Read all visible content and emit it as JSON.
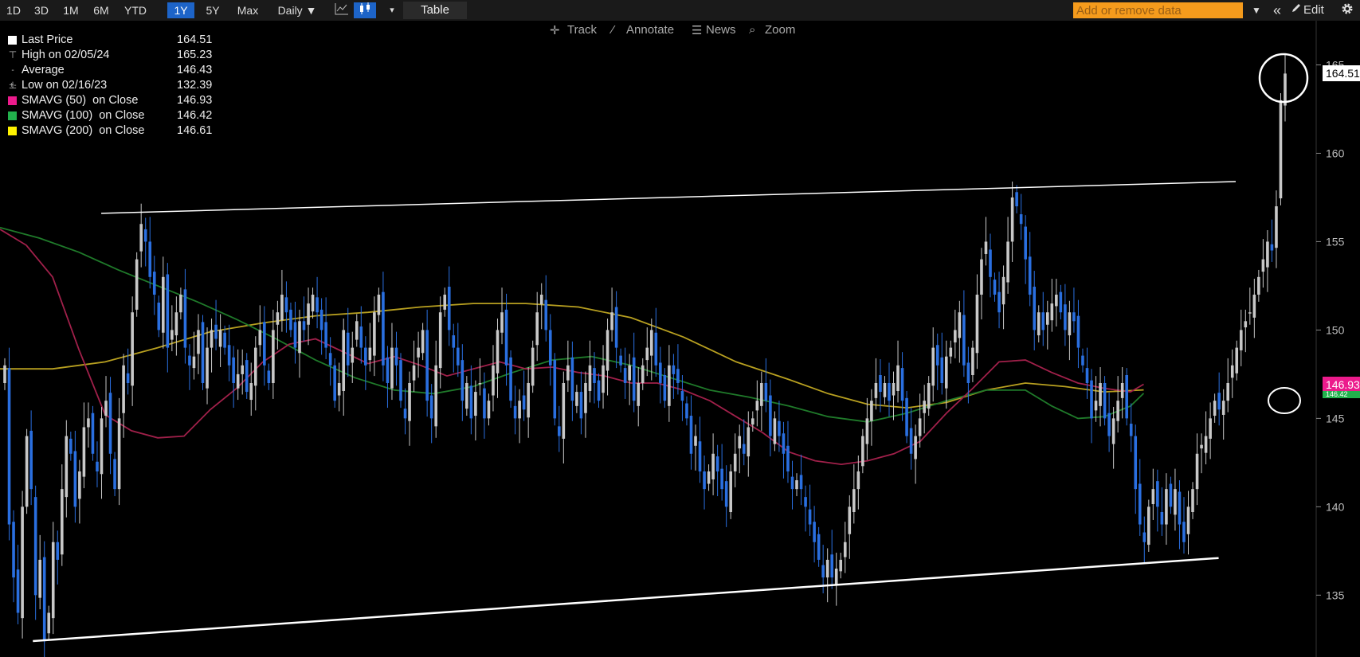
{
  "toolbar": {
    "ranges": [
      {
        "label": "1D",
        "active": false
      },
      {
        "label": "3D",
        "active": false
      },
      {
        "label": "1M",
        "active": false
      },
      {
        "label": "6M",
        "active": false
      },
      {
        "label": "YTD",
        "active": false
      },
      {
        "label": "1Y",
        "active": true
      },
      {
        "label": "5Y",
        "active": false
      },
      {
        "label": "Max",
        "active": false
      }
    ],
    "frequency": "Daily ▼",
    "chart_icon": "line-chart-icon",
    "candle_icon": "candlestick-icon",
    "more_icon": "▾",
    "table_label": "Table",
    "add_data_placeholder": "Add or remove data",
    "filter_icon": "▼",
    "collapse_icon": "«",
    "edit_label": "Edit",
    "settings_icon": "gear-icon"
  },
  "subtools": {
    "track": "Track",
    "annotate": "Annotate",
    "news": "News",
    "zoom": "Zoom"
  },
  "legend": [
    {
      "symbol": "swatch",
      "color": "#ffffff",
      "label": "Last Price",
      "value": "164.51"
    },
    {
      "symbol": "⊤",
      "color": "#bbbbbb",
      "label": "High on 02/05/24",
      "value": "165.23"
    },
    {
      "symbol": "-+-",
      "color": "#bbbbbb",
      "label": "Average",
      "value": "146.43"
    },
    {
      "symbol": "⊥",
      "color": "#bbbbbb",
      "label": "Low on 02/16/23",
      "value": "132.39"
    },
    {
      "symbol": "swatch",
      "color": "#ec1b8c",
      "label": "SMAVG (50)  on Close",
      "value": "146.93"
    },
    {
      "symbol": "swatch",
      "color": "#22b14c",
      "label": "SMAVG (100)  on Close",
      "value": "146.42"
    },
    {
      "symbol": "swatch",
      "color": "#fff200",
      "label": "SMAVG (200)  on Close",
      "value": "146.61"
    }
  ],
  "badges": {
    "last": {
      "text": "164.51",
      "bg": "#ffffff",
      "fg": "#000000"
    },
    "sma50": {
      "text": "146.93",
      "bg": "#ec1b8c",
      "fg": "#ffffff"
    },
    "sma100": {
      "text": "146.42",
      "bg": "#22b14c",
      "fg": "#ffffff"
    }
  },
  "colors": {
    "up": "#c8c8c8",
    "down": "#2a6fe0",
    "sma50": "#a0204a",
    "sma100": "#1f7a2a",
    "sma200": "#b8a020",
    "axis_text": "#bbbbbb"
  },
  "chart_data": {
    "type": "candlestick",
    "y_axis": {
      "min": 131.5,
      "max": 167.5,
      "ticks": [
        135,
        140,
        145,
        150,
        155,
        160,
        165
      ],
      "side": "right"
    },
    "trendlines": [
      {
        "name": "resistance",
        "from": [
          0.077,
          156.6
        ],
        "to": [
          0.94,
          158.4
        ]
      },
      {
        "name": "support",
        "from": [
          0.025,
          132.4
        ],
        "to": [
          0.927,
          137.1
        ]
      }
    ],
    "close_series": [
      148.0,
      139.0,
      136.0,
      134.0,
      140.0,
      144.0,
      141.0,
      135.0,
      137.0,
      132.39,
      134.0,
      138.0,
      137.0,
      141.0,
      144.0,
      143.0,
      140.0,
      142.0,
      144.5,
      145.0,
      143.0,
      142.0,
      145.0,
      146.0,
      143.0,
      141.0,
      145.0,
      148.0,
      147.0,
      151.0,
      154.0,
      156.0,
      155.0,
      153.0,
      152.0,
      150.0,
      153.0,
      149.0,
      150.0,
      151.0,
      152.0,
      149.0,
      148.0,
      148.5,
      150.0,
      147.0,
      149.0,
      150.0,
      149.5,
      150.0,
      149.0,
      148.0,
      147.0,
      147.5,
      148.0,
      146.5,
      147.0,
      149.0,
      150.0,
      148.0,
      147.0,
      150.0,
      151.0,
      152.0,
      151.0,
      150.0,
      149.0,
      150.5,
      150.0,
      151.5,
      152.0,
      151.0,
      150.0,
      149.0,
      148.0,
      146.0,
      147.0,
      150.0,
      148.0,
      149.0,
      150.5,
      149.0,
      148.0,
      149.0,
      151.0,
      152.0,
      148.0,
      147.0,
      149.0,
      148.0,
      146.0,
      145.0,
      147.0,
      148.0,
      149.0,
      150.0,
      146.0,
      145.0,
      148.0,
      151.0,
      152.0,
      150.0,
      149.0,
      148.0,
      146.0,
      147.0,
      145.0,
      146.5,
      147.0,
      145.0,
      146.0,
      148.0,
      150.0,
      151.0,
      148.0,
      146.0,
      145.0,
      146.0,
      145.5,
      147.0,
      149.0,
      151.0,
      152.0,
      150.0,
      148.0,
      145.0,
      144.0,
      147.0,
      148.0,
      146.0,
      146.5,
      145.0,
      147.0,
      148.0,
      147.0,
      146.0,
      148.0,
      150.0,
      151.0,
      149.0,
      148.0,
      147.0,
      148.0,
      146.0,
      147.0,
      148.0,
      149.0,
      150.0,
      148.0,
      147.0,
      146.0,
      148.0,
      147.5,
      147.0,
      146.0,
      145.0,
      143.0,
      144.0,
      142.0,
      141.0,
      142.0,
      143.0,
      142.0,
      141.0,
      140.0,
      142.0,
      143.0,
      144.0,
      143.0,
      144.5,
      145.0,
      146.0,
      147.0,
      146.0,
      144.0,
      145.0,
      144.0,
      143.0,
      142.0,
      141.0,
      141.5,
      141.0,
      140.0,
      139.0,
      138.0,
      137.0,
      136.0,
      137.0,
      136.0,
      136.5,
      137.0,
      138.0,
      140.0,
      141.0,
      142.0,
      144.0,
      145.0,
      146.0,
      147.0,
      146.5,
      147.0,
      146.0,
      147.0,
      148.0,
      146.0,
      144.0,
      143.0,
      144.0,
      145.0,
      146.0,
      147.0,
      149.0,
      148.0,
      147.0,
      148.5,
      149.0,
      150.0,
      151.0,
      148.0,
      147.0,
      149.0,
      152.0,
      154.0,
      155.0,
      153.0,
      152.0,
      151.0,
      153.0,
      155.0,
      157.5,
      157.0,
      156.0,
      154.0,
      152.0,
      150.0,
      151.0,
      150.0,
      151.0,
      151.5,
      152.0,
      151.0,
      150.0,
      151.0,
      150.5,
      149.0,
      148.0,
      147.0,
      145.0,
      146.0,
      147.0,
      145.0,
      144.0,
      145.0,
      146.0,
      147.0,
      145.0,
      144.0,
      141.0,
      139.0,
      138.0,
      140.0,
      141.0,
      140.0,
      139.0,
      141.0,
      140.0,
      141.0,
      139.0,
      138.0,
      140.0,
      141.0,
      143.0,
      143.5,
      144.0,
      145.0,
      146.0,
      145.5,
      146.0,
      147.0,
      148.0,
      149.0,
      150.0,
      150.5,
      151.0,
      152.0,
      153.0,
      154.0,
      155.0,
      154.5,
      157.0,
      163.0,
      164.51
    ],
    "sma50": [
      [
        0.0,
        155.7
      ],
      [
        0.02,
        154.8
      ],
      [
        0.04,
        153.0
      ],
      [
        0.06,
        148.9
      ],
      [
        0.08,
        145.2
      ],
      [
        0.1,
        144.3
      ],
      [
        0.12,
        143.9
      ],
      [
        0.14,
        144.0
      ],
      [
        0.16,
        145.5
      ],
      [
        0.18,
        146.7
      ],
      [
        0.2,
        148.2
      ],
      [
        0.22,
        149.2
      ],
      [
        0.24,
        149.5
      ],
      [
        0.26,
        148.8
      ],
      [
        0.28,
        148.1
      ],
      [
        0.3,
        148.5
      ],
      [
        0.32,
        148.0
      ],
      [
        0.34,
        147.4
      ],
      [
        0.36,
        147.8
      ],
      [
        0.38,
        148.2
      ],
      [
        0.4,
        147.8
      ],
      [
        0.42,
        147.9
      ],
      [
        0.44,
        147.6
      ],
      [
        0.46,
        147.4
      ],
      [
        0.48,
        147.0
      ],
      [
        0.5,
        147.0
      ],
      [
        0.52,
        146.6
      ],
      [
        0.54,
        146.0
      ],
      [
        0.56,
        145.1
      ],
      [
        0.58,
        144.2
      ],
      [
        0.6,
        143.1
      ],
      [
        0.62,
        142.6
      ],
      [
        0.64,
        142.4
      ],
      [
        0.66,
        142.6
      ],
      [
        0.68,
        143.0
      ],
      [
        0.7,
        143.7
      ],
      [
        0.72,
        145.3
      ],
      [
        0.74,
        146.7
      ],
      [
        0.76,
        148.2
      ],
      [
        0.78,
        148.3
      ],
      [
        0.8,
        147.6
      ],
      [
        0.82,
        147.0
      ],
      [
        0.84,
        146.7
      ],
      [
        0.86,
        146.5
      ],
      [
        0.87,
        146.93
      ]
    ],
    "sma100": [
      [
        0.0,
        155.8
      ],
      [
        0.03,
        155.2
      ],
      [
        0.06,
        154.4
      ],
      [
        0.09,
        153.4
      ],
      [
        0.12,
        152.5
      ],
      [
        0.15,
        151.6
      ],
      [
        0.18,
        150.6
      ],
      [
        0.21,
        149.5
      ],
      [
        0.24,
        148.3
      ],
      [
        0.27,
        147.3
      ],
      [
        0.3,
        146.6
      ],
      [
        0.33,
        146.4
      ],
      [
        0.36,
        146.8
      ],
      [
        0.39,
        147.6
      ],
      [
        0.42,
        148.3
      ],
      [
        0.45,
        148.5
      ],
      [
        0.48,
        148.0
      ],
      [
        0.51,
        147.3
      ],
      [
        0.54,
        146.6
      ],
      [
        0.57,
        146.2
      ],
      [
        0.6,
        145.7
      ],
      [
        0.63,
        145.1
      ],
      [
        0.66,
        144.8
      ],
      [
        0.69,
        145.3
      ],
      [
        0.72,
        146.0
      ],
      [
        0.75,
        146.6
      ],
      [
        0.78,
        146.6
      ],
      [
        0.8,
        145.7
      ],
      [
        0.82,
        145.0
      ],
      [
        0.84,
        145.1
      ],
      [
        0.86,
        145.7
      ],
      [
        0.87,
        146.42
      ]
    ],
    "sma200": [
      [
        0.0,
        147.8
      ],
      [
        0.04,
        147.8
      ],
      [
        0.08,
        148.2
      ],
      [
        0.12,
        149.0
      ],
      [
        0.16,
        149.9
      ],
      [
        0.2,
        150.4
      ],
      [
        0.24,
        150.8
      ],
      [
        0.28,
        151.0
      ],
      [
        0.32,
        151.3
      ],
      [
        0.36,
        151.5
      ],
      [
        0.4,
        151.5
      ],
      [
        0.44,
        151.3
      ],
      [
        0.48,
        150.7
      ],
      [
        0.52,
        149.6
      ],
      [
        0.56,
        148.2
      ],
      [
        0.6,
        147.2
      ],
      [
        0.63,
        146.4
      ],
      [
        0.66,
        145.8
      ],
      [
        0.69,
        145.6
      ],
      [
        0.72,
        145.9
      ],
      [
        0.75,
        146.6
      ],
      [
        0.78,
        147.0
      ],
      [
        0.81,
        146.8
      ],
      [
        0.84,
        146.5
      ],
      [
        0.87,
        146.61
      ]
    ]
  }
}
